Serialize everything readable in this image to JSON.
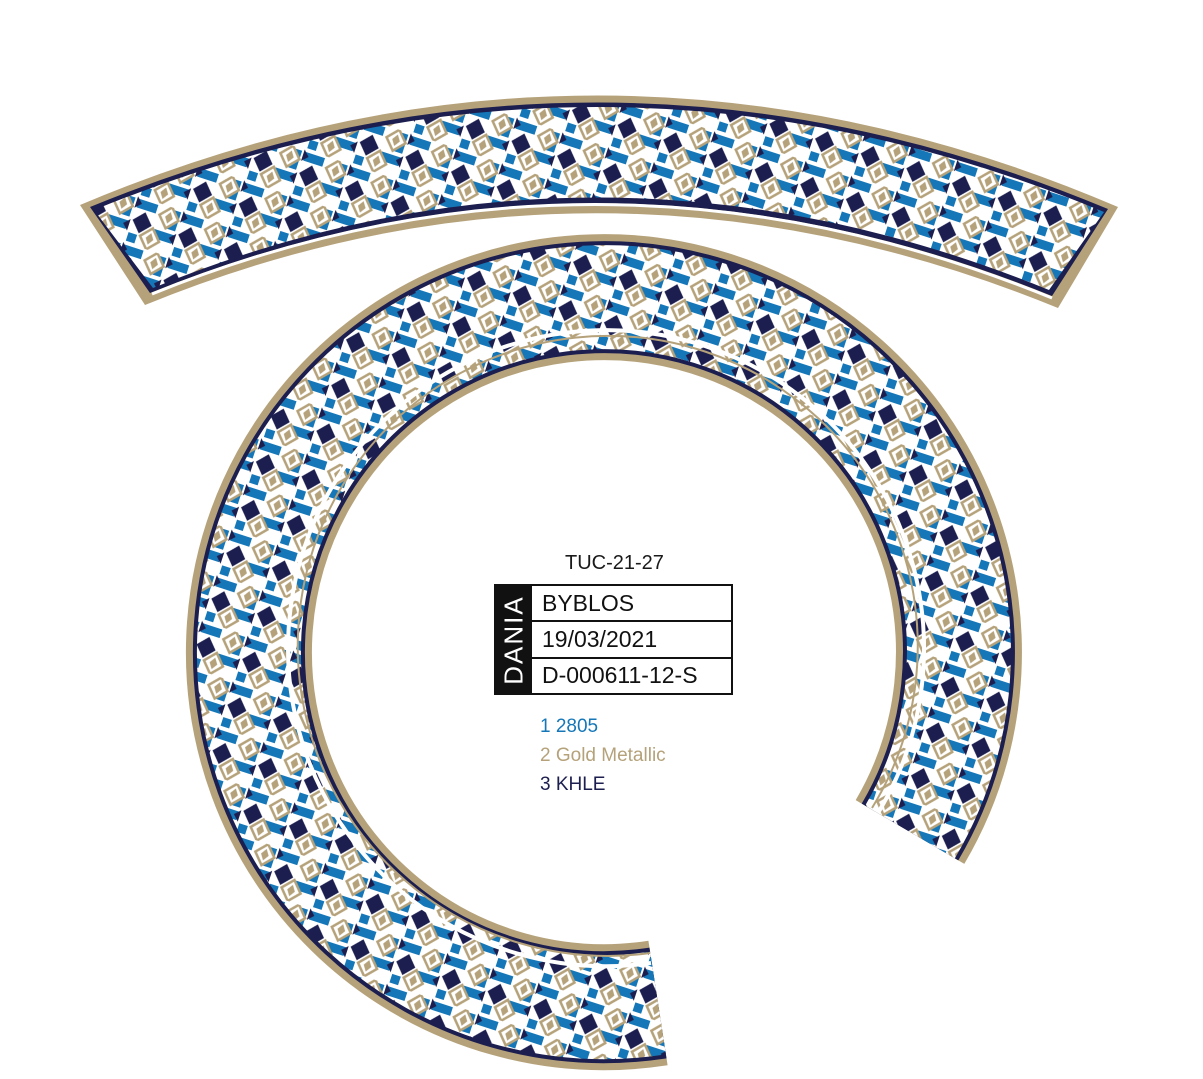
{
  "colors": {
    "blue": "#1577b8",
    "gold": "#b5a27a",
    "navy": "#1c1e4f",
    "white": "#ffffff"
  },
  "code": "TUC-21-27",
  "label": {
    "brand": "DANIA",
    "name": "BYBLOS",
    "date": "19/03/2021",
    "ref": "D-000611-12-S"
  },
  "legend": [
    {
      "text": "1 2805",
      "color": "#1577b8"
    },
    {
      "text": "2 Gold Metallic",
      "color": "#b5a27a"
    },
    {
      "text": "3 KHLE",
      "color": "#1c1e4f"
    }
  ]
}
